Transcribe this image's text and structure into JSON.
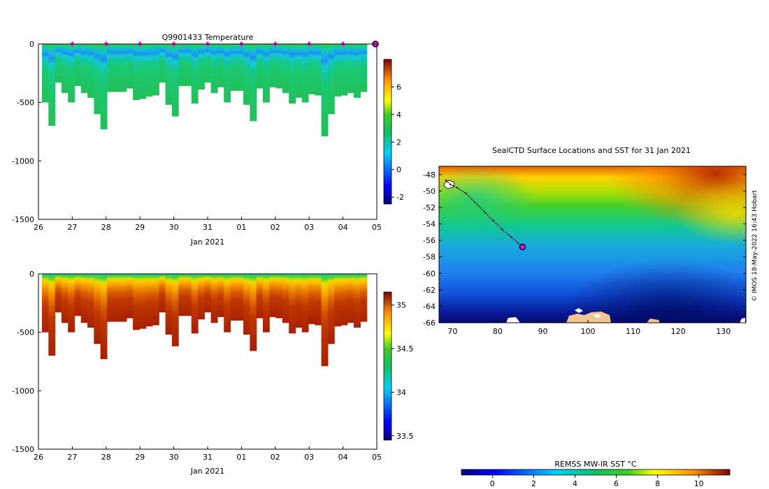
{
  "chart_data": [
    {
      "type": "heatmap",
      "title": "Q9901433  Temperature",
      "xlabel": "Jan 2021",
      "ylabel": "",
      "x_ticks": [
        "26",
        "27",
        "28",
        "29",
        "30",
        "31",
        "01",
        "02",
        "03",
        "04",
        "05"
      ],
      "y_ticks": [
        0,
        -500,
        -1000,
        -1500
      ],
      "ylim": [
        -1500,
        0
      ],
      "colorbar": {
        "ticks": [
          6,
          4,
          2,
          0,
          -2
        ],
        "range": [
          -2.5,
          8
        ]
      },
      "markers_at_day": [
        1,
        2,
        3,
        4,
        5,
        6,
        7,
        8,
        9
      ],
      "end_marker_day": 10,
      "profile_depths": [
        500,
        700,
        330,
        420,
        500,
        360,
        420,
        460,
        600,
        730,
        410,
        410,
        410,
        380,
        480,
        470,
        450,
        440,
        330,
        520,
        620,
        360,
        360,
        510,
        390,
        330,
        420,
        370,
        500,
        400,
        400,
        520,
        660,
        380,
        500,
        370,
        380,
        420,
        510,
        460,
        500,
        430,
        440,
        790,
        600,
        450,
        440,
        420,
        460,
        410
      ]
    },
    {
      "type": "heatmap",
      "title": "",
      "xlabel": "Jan 2021",
      "ylabel": "",
      "x_ticks": [
        "26",
        "27",
        "28",
        "29",
        "30",
        "31",
        "01",
        "02",
        "03",
        "04",
        "05"
      ],
      "y_ticks": [
        0,
        -500,
        -1000,
        -1500
      ],
      "ylim": [
        -1500,
        0
      ],
      "colorbar": {
        "ticks": [
          35,
          34.5,
          34,
          33.5
        ],
        "range": [
          33.45,
          35.15
        ]
      },
      "profile_depths": [
        500,
        700,
        330,
        420,
        500,
        360,
        420,
        460,
        600,
        730,
        410,
        410,
        410,
        380,
        480,
        470,
        450,
        440,
        330,
        520,
        620,
        360,
        360,
        510,
        390,
        330,
        420,
        370,
        500,
        400,
        400,
        520,
        660,
        380,
        500,
        370,
        380,
        420,
        510,
        460,
        500,
        430,
        440,
        790,
        600,
        450,
        440,
        420,
        460,
        410
      ]
    },
    {
      "type": "heatmap",
      "title": "SealCTD Surface Locations and SST for 31 Jan 2021",
      "xlabel": "",
      "ylabel": "",
      "x_ticks": [
        70,
        80,
        90,
        100,
        110,
        120,
        130
      ],
      "y_ticks": [
        -48,
        -50,
        -52,
        -54,
        -56,
        -58,
        -60,
        -62,
        -64,
        -66
      ],
      "xlim": [
        67,
        135
      ],
      "ylim": [
        -66,
        -47
      ],
      "track_lon": [
        68.5,
        69.5,
        71,
        73,
        75,
        77,
        79,
        81,
        83,
        84.5,
        85.5
      ],
      "track_lat": [
        -48.7,
        -49.2,
        -49.6,
        -50.3,
        -51.4,
        -52.5,
        -53.6,
        -54.7,
        -55.6,
        -56.3,
        -56.8
      ],
      "colorbar_title": "REMSS MW-IR SST °C",
      "colorbar_ticks": [
        0,
        2,
        4,
        6,
        8,
        10
      ],
      "colorbar_range": [
        -1.5,
        11.5
      ]
    }
  ],
  "watermark": "© IMOS 18-May-2022 16:43 Hobart"
}
